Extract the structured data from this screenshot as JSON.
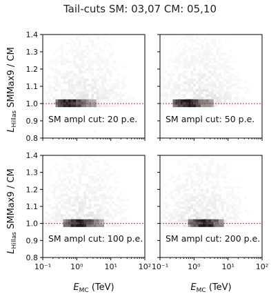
{
  "figure": {
    "title": "Tail-cuts SM: 03,07 CM: 05,10",
    "ylabel_main": "L",
    "ylabel_sub": "Hillas",
    "ylabel_rest": " SMMax9 / CM",
    "xlabel_main": "E",
    "xlabel_sub": "MC",
    "xlabel_rest": " (TeV)"
  },
  "chart_data": [
    {
      "type": "heatmap",
      "annotation": "SM ampl cut: 20 p.e.",
      "xscale": "log",
      "xlim": [
        0.1,
        100
      ],
      "ylim": [
        0.8,
        1.4
      ],
      "xticks": [
        "10⁻¹",
        "10⁰",
        "10¹",
        "10²"
      ],
      "yticks": [
        "0.8",
        "0.9",
        "1.0",
        "1.1",
        "1.2",
        "1.3",
        "1.4"
      ],
      "reference_line": {
        "y": 1.0,
        "color": "#d62728",
        "style": "dotted"
      },
      "core": {
        "x_range": [
          0.3,
          2.0
        ],
        "y": 1.0,
        "peak_x": 0.6
      },
      "colormap": "Greys"
    },
    {
      "type": "heatmap",
      "annotation": "SM ampl cut: 50 p.e.",
      "xscale": "log",
      "xlim": [
        0.1,
        100
      ],
      "ylim": [
        0.8,
        1.4
      ],
      "xticks": [
        "10⁻¹",
        "10⁰",
        "10¹",
        "10²"
      ],
      "yticks": [
        "0.8",
        "0.9",
        "1.0",
        "1.1",
        "1.2",
        "1.3",
        "1.4"
      ],
      "reference_line": {
        "y": 1.0,
        "color": "#d62728",
        "style": "dotted"
      },
      "core": {
        "x_range": [
          0.3,
          2.0
        ],
        "y": 1.0,
        "peak_x": 0.6
      },
      "colormap": "Greys"
    },
    {
      "type": "heatmap",
      "annotation": "SM ampl cut: 100 p.e.",
      "xscale": "log",
      "xlim": [
        0.1,
        100
      ],
      "ylim": [
        0.8,
        1.4
      ],
      "xticks": [
        "10⁻¹",
        "10⁰",
        "10¹",
        "10²"
      ],
      "yticks": [
        "0.8",
        "0.9",
        "1.0",
        "1.1",
        "1.2",
        "1.3",
        "1.4"
      ],
      "reference_line": {
        "y": 1.0,
        "color": "#d62728",
        "style": "dotted"
      },
      "core": {
        "x_range": [
          0.5,
          3.0
        ],
        "y": 1.0,
        "peak_x": 1.2
      },
      "colormap": "Greys"
    },
    {
      "type": "heatmap",
      "annotation": "SM ampl cut: 200 p.e.",
      "xscale": "log",
      "xlim": [
        0.1,
        100
      ],
      "ylim": [
        0.8,
        1.4
      ],
      "xticks": [
        "10⁻¹",
        "10⁰",
        "10¹",
        "10²"
      ],
      "yticks": [
        "0.8",
        "0.9",
        "1.0",
        "1.1",
        "1.2",
        "1.3",
        "1.4"
      ],
      "reference_line": {
        "y": 1.0,
        "color": "#d62728",
        "style": "dotted"
      },
      "core": {
        "x_range": [
          0.8,
          4.0
        ],
        "y": 1.0,
        "peak_x": 2.0
      },
      "colormap": "Greys"
    }
  ]
}
